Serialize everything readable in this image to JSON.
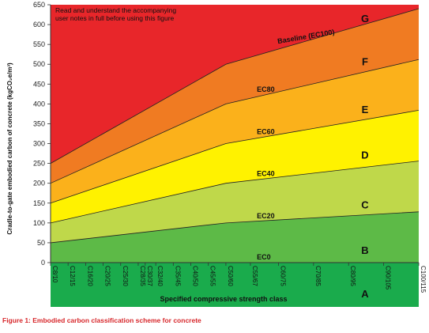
{
  "chart_data": {
    "type": "area",
    "ylabel": "Cradle-to-gate embodied carbon of concrete (kgCO₂e/m³)",
    "xlabel": "Specified compressive strength class",
    "note_lines": [
      "Read and understand the accompanying",
      "user notes in full before using this figure"
    ],
    "ylim": [
      0,
      650
    ],
    "yticks": [
      0,
      50,
      100,
      150,
      200,
      250,
      300,
      350,
      400,
      450,
      500,
      550,
      600,
      650
    ],
    "categories": [
      {
        "label": "C8/10",
        "x": 10
      },
      {
        "label": "C12/15",
        "x": 15
      },
      {
        "label": "C16/20",
        "x": 20
      },
      {
        "label": "C20/25",
        "x": 25
      },
      {
        "label": "C25/30",
        "x": 30
      },
      {
        "label": "C28/35",
        "x": 35
      },
      {
        "label": "C30/37",
        "x": 37
      },
      {
        "label": "C32/40",
        "x": 40
      },
      {
        "label": "C35/45",
        "x": 45
      },
      {
        "label": "C40/50",
        "x": 50
      },
      {
        "label": "C45/55",
        "x": 55
      },
      {
        "label": "C50/60",
        "x": 60
      },
      {
        "label": "C55/67",
        "x": 67
      },
      {
        "label": "C60/75",
        "x": 75
      },
      {
        "label": "C70/85",
        "x": 85
      },
      {
        "label": "C80/95",
        "x": 95
      },
      {
        "label": "C90/105",
        "x": 105
      },
      {
        "label": "C100/115",
        "x": 115
      }
    ],
    "boundaries": [
      {
        "name": "Baseline (EC100)",
        "points": [
          [
            10,
            250
          ],
          [
            60,
            500
          ],
          [
            115,
            640
          ]
        ]
      },
      {
        "name": "EC80",
        "points": [
          [
            10,
            200
          ],
          [
            60,
            400
          ],
          [
            115,
            512
          ]
        ]
      },
      {
        "name": "EC60",
        "points": [
          [
            10,
            150
          ],
          [
            60,
            300
          ],
          [
            115,
            384
          ]
        ]
      },
      {
        "name": "EC40",
        "points": [
          [
            10,
            100
          ],
          [
            60,
            200
          ],
          [
            115,
            256
          ]
        ]
      },
      {
        "name": "EC20",
        "points": [
          [
            10,
            50
          ],
          [
            60,
            100
          ],
          [
            115,
            128
          ]
        ]
      },
      {
        "name": "EC0",
        "points": [
          [
            10,
            0
          ],
          [
            115,
            0
          ]
        ]
      }
    ],
    "bands": [
      {
        "grade": "G",
        "color": "#e8262a"
      },
      {
        "grade": "F",
        "color": "#f07b22"
      },
      {
        "grade": "E",
        "color": "#fbb11b"
      },
      {
        "grade": "D",
        "color": "#fff200"
      },
      {
        "grade": "C",
        "color": "#bfd84a"
      },
      {
        "grade": "B",
        "color": "#5dba47"
      },
      {
        "grade": "A",
        "color": "#1aab4c"
      }
    ]
  },
  "caption": "Figure 1: Embodied carbon classification scheme for concrete"
}
